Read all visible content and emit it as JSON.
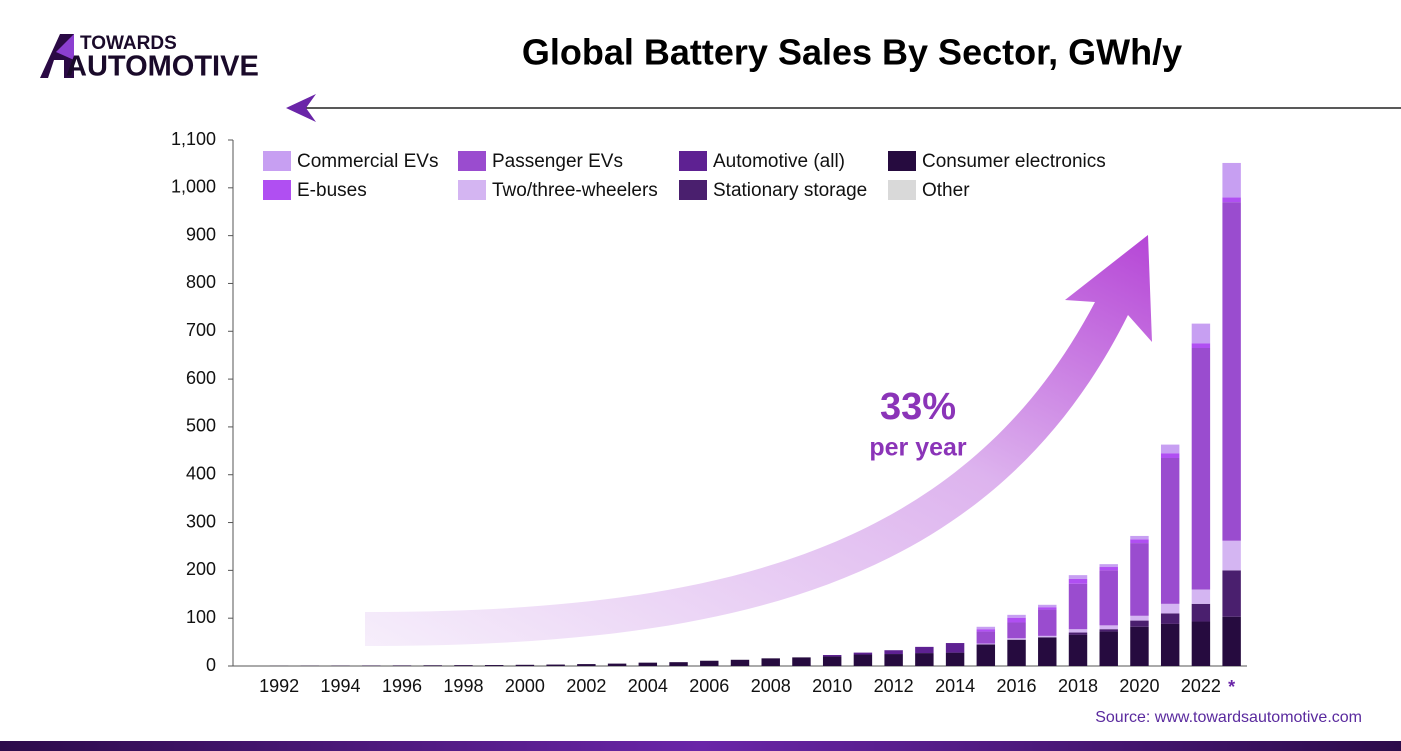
{
  "logo": {
    "top": "TOWARDS",
    "bottom": "AUTOMOTIVE"
  },
  "source": "Source: www.towardsautomotive.com",
  "chart_data": {
    "type": "stacked-bar",
    "title": "Global Battery Sales By Sector, GWh/y",
    "annotations": [
      "33%",
      "per year"
    ],
    "categories": [
      null,
      "1992",
      null,
      "1994",
      null,
      "1996",
      null,
      "1998",
      null,
      "2000",
      null,
      "2002",
      null,
      "2004",
      null,
      "2006",
      null,
      "2008",
      null,
      "2010",
      null,
      "2012",
      null,
      "2014",
      null,
      "2016",
      null,
      "2018",
      null,
      "2020",
      null,
      "2022",
      "*"
    ],
    "ylim": [
      0,
      1100
    ],
    "yticks": [
      0,
      100,
      200,
      300,
      400,
      500,
      600,
      700,
      800,
      900,
      {
        "value": 1000,
        "label": "1,000"
      },
      {
        "value": 1100,
        "label": "1,100"
      }
    ],
    "series": [
      {
        "name": "Commercial EVs",
        "color": "#c79ff2",
        "values": [
          0,
          0,
          0,
          0,
          0,
          0,
          0,
          0,
          0,
          0,
          0,
          0,
          0,
          0,
          0,
          0,
          0,
          0,
          0,
          0,
          0,
          0,
          0,
          0,
          5,
          6,
          5,
          8,
          6,
          7,
          18,
          41,
          72
        ]
      },
      {
        "name": "Passenger EVs",
        "color": "#9a4ccf",
        "values": [
          0,
          0,
          0,
          0,
          0,
          0,
          0,
          0,
          0,
          0,
          0,
          0,
          0,
          0,
          0,
          0,
          0,
          0,
          0,
          0,
          0,
          0,
          0,
          0,
          25,
          33,
          55,
          95,
          115,
          152,
          305,
          505,
          708
        ]
      },
      {
        "name": "Automotive (all)",
        "color": "#5e2192",
        "values": [
          0,
          0,
          0,
          0,
          0,
          0,
          0,
          0,
          0,
          0,
          0,
          0,
          0,
          0,
          0,
          0,
          0,
          0,
          0,
          3,
          4,
          8,
          13,
          20,
          0,
          0,
          0,
          0,
          0,
          0,
          0,
          0,
          0
        ]
      },
      {
        "name": "Consumer electronics",
        "color": "#260b3f",
        "values": [
          0,
          0.3,
          0.5,
          0.7,
          1,
          1.2,
          1.5,
          1.8,
          2,
          2.5,
          3,
          4,
          5,
          7,
          8,
          11,
          13,
          16,
          18,
          20,
          24,
          25,
          27,
          28,
          45,
          55,
          60,
          65,
          72,
          82,
          88,
          93,
          103
        ]
      },
      {
        "name": "E-buses",
        "color": "#b04ff2",
        "values": [
          0,
          0,
          0,
          0,
          0,
          0,
          0,
          0,
          0,
          0,
          0,
          0,
          0,
          0,
          0,
          0,
          0,
          0,
          0,
          0,
          0,
          0,
          0,
          0,
          5,
          10,
          5,
          10,
          7,
          8,
          10,
          10,
          10
        ]
      },
      {
        "name": "Two/three-wheelers",
        "color": "#d4b5f2",
        "values": [
          0,
          0,
          0,
          0,
          0,
          0,
          0,
          0,
          0,
          0,
          0,
          0,
          0,
          0,
          0,
          0,
          0,
          0,
          0,
          0,
          0,
          0,
          0,
          0,
          2,
          3,
          3,
          7,
          8,
          10,
          20,
          30,
          62
        ]
      },
      {
        "name": "Stationary storage",
        "color": "#4a1f6e",
        "values": [
          0,
          0,
          0,
          0,
          0,
          0,
          0,
          0,
          0,
          0,
          0,
          0,
          0,
          0,
          0,
          0,
          0,
          0,
          0,
          0,
          0,
          0,
          0,
          0,
          0,
          0,
          0,
          5,
          5,
          13,
          22,
          37,
          97
        ]
      },
      {
        "name": "Other",
        "color": "#d9d9d9",
        "values": [
          0,
          0,
          0,
          0,
          0,
          0,
          0,
          0,
          0,
          0,
          0,
          0,
          0,
          0,
          0,
          0,
          0,
          0,
          0,
          0,
          0,
          0,
          0,
          0,
          0,
          0,
          0,
          0,
          0,
          0,
          0,
          0,
          0
        ]
      }
    ]
  }
}
